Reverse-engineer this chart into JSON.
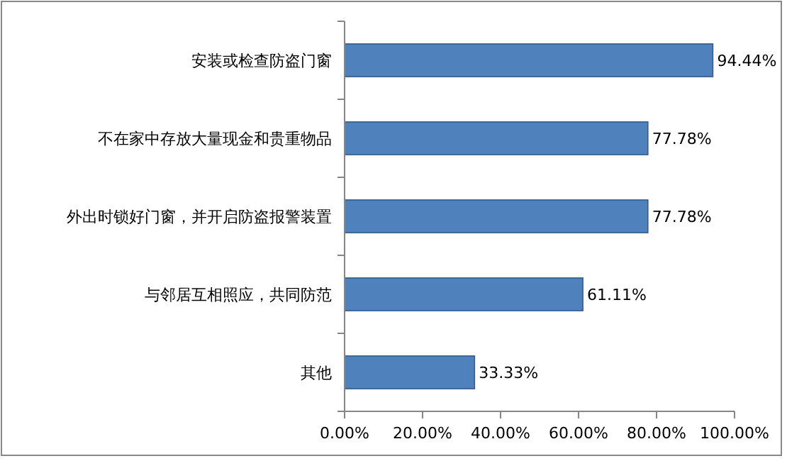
{
  "chart_data": {
    "type": "bar",
    "orientation": "horizontal",
    "categories": [
      "安装或检查防盗门窗",
      "不在家中存放大量现金和贵重物品",
      "外出时锁好门窗，并开启防盗报警装置",
      "与邻居互相照应，共同防范",
      "其他"
    ],
    "values": [
      94.44,
      77.78,
      77.78,
      61.11,
      33.33
    ],
    "value_labels": [
      "94.44%",
      "77.78%",
      "77.78%",
      "61.11%",
      "33.33%"
    ],
    "color": "#4f81bd",
    "xlim": [
      0,
      100
    ],
    "xticks": [
      {
        "value": 0,
        "label": "0.00%"
      },
      {
        "value": 20,
        "label": "20.00%"
      },
      {
        "value": 40,
        "label": "40.00%"
      },
      {
        "value": 60,
        "label": "60.00%"
      },
      {
        "value": 80,
        "label": "80.00%"
      },
      {
        "value": 100,
        "label": "100.00%"
      }
    ],
    "grid": false
  }
}
